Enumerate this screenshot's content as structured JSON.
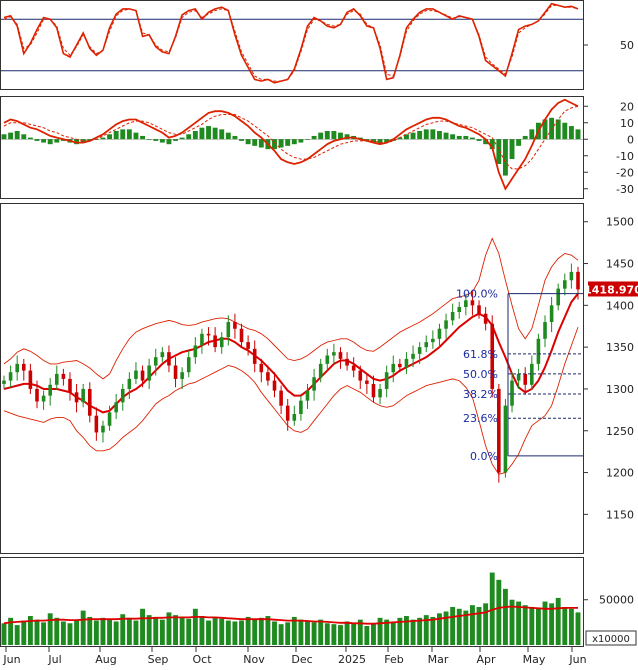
{
  "chart_data": [
    {
      "type": "line",
      "panel": "stochastic",
      "yticks": [
        "50"
      ],
      "reference_lines": [
        80,
        20
      ],
      "ylim": [
        0,
        100
      ],
      "series": [
        {
          "values": [
            82,
            84,
            72,
            40,
            52,
            68,
            82,
            80,
            70,
            40,
            36,
            50,
            64,
            46,
            38,
            44,
            70,
            86,
            92,
            92,
            90,
            60,
            62,
            48,
            42,
            40,
            60,
            85,
            90,
            92,
            80,
            88,
            92,
            94,
            90,
            62,
            38,
            24,
            10,
            8,
            10,
            6,
            8,
            10,
            22,
            45,
            72,
            82,
            78,
            72,
            70,
            74,
            88,
            92,
            84,
            72,
            70,
            46,
            10,
            12,
            38,
            70,
            80,
            88,
            92,
            92,
            88,
            84,
            80,
            84,
            82,
            80,
            60,
            32,
            26,
            20,
            14,
            40,
            68,
            72,
            74,
            78,
            88,
            98,
            96,
            94,
            95,
            92
          ],
          "color": "#dd2200"
        },
        {
          "values": [
            80,
            83,
            74,
            46,
            50,
            64,
            80,
            80,
            72,
            46,
            38,
            48,
            62,
            48,
            40,
            44,
            66,
            84,
            90,
            92,
            90,
            64,
            62,
            50,
            44,
            42,
            58,
            82,
            88,
            90,
            82,
            86,
            90,
            92,
            90,
            66,
            42,
            28,
            14,
            10,
            10,
            8,
            8,
            10,
            20,
            42,
            68,
            80,
            78,
            74,
            72,
            74,
            86,
            90,
            86,
            74,
            70,
            50,
            16,
            14,
            36,
            66,
            78,
            86,
            90,
            90,
            88,
            85,
            81,
            83,
            82,
            80,
            62,
            36,
            28,
            22,
            16,
            36,
            64,
            70,
            74,
            78,
            86,
            96,
            96,
            94,
            94,
            92
          ],
          "color": "#dd2200",
          "dashed": true
        }
      ]
    },
    {
      "type": "bar",
      "panel": "macd",
      "yticks": [
        "20",
        "10",
        "0",
        "-10",
        "-20",
        "-30"
      ],
      "ylim": [
        -35,
        25
      ],
      "histogram": [
        3,
        4,
        5,
        3,
        1,
        -1,
        -2,
        -3,
        -2,
        -1,
        -2,
        -3,
        -2,
        -1,
        0,
        1,
        3,
        5,
        6,
        6,
        4,
        2,
        0,
        -1,
        -2,
        -3,
        -1,
        1,
        3,
        5,
        7,
        8,
        7,
        6,
        4,
        2,
        -1,
        -3,
        -4,
        -5,
        -6,
        -6,
        -5,
        -4,
        -3,
        -2,
        0,
        2,
        4,
        5,
        5,
        4,
        3,
        2,
        1,
        -1,
        -2,
        -3,
        -2,
        -1,
        1,
        3,
        4,
        5,
        6,
        6,
        5,
        4,
        3,
        2,
        2,
        1,
        -1,
        -3,
        -6,
        -15,
        -22,
        -12,
        -4,
        2,
        6,
        10,
        12,
        13,
        12,
        10,
        8,
        6
      ],
      "series": [
        {
          "values": [
            10,
            12,
            11,
            9,
            7,
            6,
            4,
            2,
            1,
            0,
            -1,
            -2,
            -2,
            -1,
            1,
            3,
            6,
            9,
            11,
            12,
            12,
            10,
            8,
            6,
            4,
            1,
            2,
            4,
            7,
            10,
            13,
            16,
            17,
            17,
            16,
            14,
            11,
            8,
            4,
            1,
            -3,
            -7,
            -12,
            -14,
            -15,
            -14,
            -12,
            -9,
            -6,
            -3,
            -1,
            0,
            1,
            1,
            0,
            -1,
            -2,
            -3,
            -2,
            0,
            3,
            6,
            8,
            10,
            12,
            13,
            13,
            12,
            10,
            8,
            7,
            5,
            3,
            0,
            -5,
            -20,
            -30,
            -24,
            -18,
            -12,
            -4,
            5,
            12,
            18,
            22,
            24,
            22,
            20
          ],
          "color": "#dd2200"
        },
        {
          "values": [
            8,
            10,
            10,
            10,
            9,
            8,
            7,
            5,
            4,
            2,
            1,
            0,
            -1,
            -1,
            0,
            2,
            4,
            6,
            8,
            10,
            11,
            11,
            10,
            8,
            6,
            4,
            3,
            3,
            5,
            7,
            9,
            12,
            14,
            15,
            15,
            15,
            13,
            11,
            8,
            5,
            2,
            -2,
            -6,
            -9,
            -11,
            -12,
            -12,
            -11,
            -9,
            -7,
            -5,
            -3,
            -2,
            -1,
            -1,
            -1,
            -1,
            -2,
            -2,
            -1,
            1,
            3,
            5,
            7,
            9,
            10,
            11,
            11,
            10,
            9,
            8,
            7,
            5,
            3,
            1,
            -6,
            -14,
            -18,
            -18,
            -16,
            -12,
            -6,
            0,
            6,
            12,
            17,
            19,
            20
          ],
          "color": "#dd2200",
          "dashed": true
        }
      ]
    },
    {
      "type": "candlestick",
      "panel": "price",
      "yticks": [
        "1500",
        "1450",
        "1400",
        "1350",
        "1300",
        "1250",
        "1200",
        "1150"
      ],
      "ylim": [
        1105,
        1520
      ],
      "last_price_label": "1418.970",
      "fibonacci": [
        {
          "label": "100.0%",
          "value": 1414
        },
        {
          "label": "61.8%",
          "value": 1342
        },
        {
          "label": "50.0%",
          "value": 1318
        },
        {
          "label": "38.2%",
          "value": 1294
        },
        {
          "label": "23.6%",
          "value": 1265
        },
        {
          "label": "0.0%",
          "value": 1220
        }
      ],
      "close": [
        1310,
        1320,
        1330,
        1322,
        1300,
        1285,
        1292,
        1305,
        1318,
        1312,
        1296,
        1284,
        1300,
        1268,
        1248,
        1256,
        1272,
        1284,
        1300,
        1312,
        1322,
        1310,
        1328,
        1338,
        1344,
        1328,
        1312,
        1320,
        1338,
        1352,
        1366,
        1364,
        1350,
        1362,
        1380,
        1372,
        1356,
        1348,
        1330,
        1320,
        1310,
        1298,
        1280,
        1262,
        1270,
        1286,
        1298,
        1314,
        1330,
        1340,
        1344,
        1336,
        1328,
        1322,
        1310,
        1306,
        1290,
        1300,
        1320,
        1330,
        1326,
        1336,
        1342,
        1350,
        1356,
        1360,
        1372,
        1382,
        1392,
        1398,
        1406,
        1400,
        1390,
        1378,
        1300,
        1200,
        1280,
        1310,
        1318,
        1305,
        1330,
        1360,
        1380,
        1400,
        1420,
        1430,
        1440,
        1419
      ],
      "series": [
        {
          "name": "MA",
          "values": [
            1300,
            1302,
            1304,
            1306,
            1306,
            1304,
            1300,
            1300,
            1300,
            1298,
            1296,
            1290,
            1286,
            1280,
            1276,
            1272,
            1274,
            1282,
            1290,
            1296,
            1300,
            1306,
            1314,
            1322,
            1330,
            1336,
            1340,
            1344,
            1346,
            1348,
            1352,
            1356,
            1358,
            1360,
            1360,
            1356,
            1350,
            1346,
            1340,
            1334,
            1326,
            1318,
            1308,
            1298,
            1292,
            1292,
            1298,
            1306,
            1314,
            1322,
            1330,
            1334,
            1334,
            1330,
            1324,
            1318,
            1312,
            1310,
            1312,
            1316,
            1322,
            1326,
            1330,
            1334,
            1338,
            1344,
            1350,
            1358,
            1366,
            1374,
            1380,
            1386,
            1390,
            1386,
            1376,
            1356,
            1338,
            1318,
            1302,
            1296,
            1300,
            1310,
            1326,
            1346,
            1368,
            1386,
            1404,
            1414
          ],
          "color": "#dd0000"
        },
        {
          "name": "upper",
          "values": [
            1330,
            1336,
            1344,
            1348,
            1345,
            1340,
            1334,
            1330,
            1330,
            1332,
            1333,
            1334,
            1330,
            1325,
            1318,
            1312,
            1318,
            1334,
            1348,
            1360,
            1368,
            1372,
            1375,
            1378,
            1380,
            1382,
            1380,
            1377,
            1376,
            1377,
            1380,
            1382,
            1384,
            1385,
            1384,
            1380,
            1376,
            1372,
            1370,
            1366,
            1360,
            1352,
            1344,
            1336,
            1334,
            1336,
            1340,
            1346,
            1352,
            1356,
            1358,
            1360,
            1360,
            1356,
            1350,
            1346,
            1345,
            1350,
            1356,
            1362,
            1368,
            1372,
            1376,
            1380,
            1385,
            1390,
            1396,
            1402,
            1408,
            1410,
            1412,
            1416,
            1430,
            1460,
            1480,
            1462,
            1430,
            1400,
            1372,
            1360,
            1372,
            1400,
            1430,
            1446,
            1456,
            1462,
            1460,
            1454
          ],
          "color": "#dd2200",
          "thin": true
        },
        {
          "name": "lower",
          "values": [
            1274,
            1271,
            1268,
            1266,
            1264,
            1262,
            1260,
            1264,
            1266,
            1266,
            1262,
            1250,
            1242,
            1232,
            1226,
            1226,
            1228,
            1234,
            1242,
            1248,
            1254,
            1262,
            1272,
            1282,
            1288,
            1292,
            1298,
            1302,
            1306,
            1308,
            1312,
            1316,
            1320,
            1324,
            1328,
            1326,
            1322,
            1316,
            1308,
            1296,
            1286,
            1276,
            1266,
            1256,
            1250,
            1248,
            1252,
            1262,
            1272,
            1282,
            1292,
            1300,
            1304,
            1300,
            1296,
            1290,
            1284,
            1280,
            1278,
            1280,
            1286,
            1292,
            1296,
            1300,
            1304,
            1306,
            1308,
            1310,
            1312,
            1310,
            1302,
            1290,
            1262,
            1232,
            1210,
            1198,
            1200,
            1210,
            1222,
            1240,
            1256,
            1262,
            1268,
            1280,
            1304,
            1330,
            1352,
            1374
          ],
          "color": "#dd2200",
          "thin": true
        }
      ]
    },
    {
      "type": "bar",
      "panel": "volume",
      "yticks": [
        "50000"
      ],
      "ylim": [
        0,
        95000
      ],
      "unit_label": "x10000",
      "xlabels": [
        "Jun",
        "Jul",
        "Aug",
        "Sep",
        "Oct",
        "Nov",
        "Dec",
        "2025",
        "Feb",
        "Mar",
        "Apr",
        "May",
        "Jun"
      ],
      "values": [
        24000,
        30000,
        22000,
        27000,
        32000,
        28000,
        25000,
        35000,
        30000,
        26000,
        24000,
        28000,
        38000,
        31000,
        27000,
        30000,
        29000,
        26000,
        34000,
        30000,
        27000,
        40000,
        33000,
        31000,
        28000,
        36000,
        33000,
        30000,
        29000,
        40000,
        32000,
        27000,
        30000,
        29000,
        27000,
        26000,
        27000,
        31000,
        28000,
        30000,
        32000,
        26000,
        23000,
        25000,
        31000,
        28000,
        26000,
        25000,
        28000,
        24000,
        23000,
        22000,
        26000,
        24000,
        28000,
        21000,
        24000,
        30000,
        28000,
        26000,
        30000,
        32000,
        28000,
        30000,
        33000,
        31000,
        35000,
        37000,
        42000,
        40000,
        38000,
        44000,
        42000,
        46000,
        80000,
        72000,
        62000,
        50000,
        48000,
        44000,
        42000,
        40000,
        48000,
        46000,
        52000,
        42000,
        40000,
        36000
      ],
      "ma": [
        24000,
        25000,
        25500,
        26000,
        26500,
        27000,
        27000,
        27500,
        28000,
        28000,
        27500,
        27500,
        28000,
        28500,
        28500,
        28500,
        28500,
        28500,
        29000,
        29000,
        29000,
        29500,
        29500,
        30000,
        30000,
        30500,
        30500,
        30500,
        30500,
        31000,
        31000,
        30500,
        30500,
        30000,
        29500,
        29000,
        28500,
        28500,
        28500,
        28500,
        28500,
        28000,
        27500,
        27000,
        27000,
        27000,
        26500,
        26000,
        26000,
        25500,
        25000,
        24500,
        24500,
        24000,
        24000,
        23500,
        23500,
        24000,
        24500,
        25000,
        25500,
        26000,
        26500,
        27000,
        27500,
        28000,
        29000,
        30000,
        31000,
        32000,
        33000,
        34000,
        35000,
        36000,
        39000,
        41000,
        42000,
        42500,
        42000,
        41500,
        41000,
        40500,
        40000,
        40000,
        40500,
        41000,
        41000,
        41000
      ]
    }
  ]
}
